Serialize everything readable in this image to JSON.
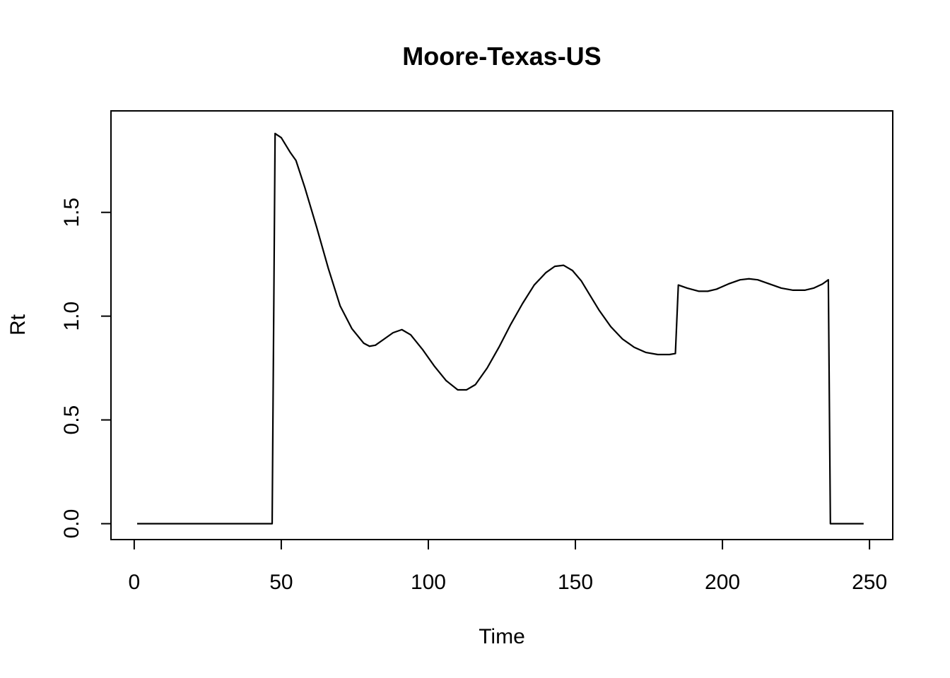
{
  "chart_data": {
    "type": "line",
    "title": "Moore-Texas-US",
    "xlabel": "Time",
    "ylabel": "Rt",
    "xlim": [
      -7.9,
      257.9
    ],
    "ylim": [
      -0.0765,
      1.989
    ],
    "xticks": [
      0,
      50,
      100,
      150,
      200,
      250
    ],
    "yticks": [
      0.0,
      0.5,
      1.0,
      1.5
    ],
    "xtick_labels": [
      "0",
      "50",
      "100",
      "150",
      "200",
      "250"
    ],
    "ytick_labels": [
      "0.0",
      "0.5",
      "1.0",
      "1.5"
    ],
    "grid": false,
    "series": [
      {
        "points": [
          [
            1,
            0
          ],
          [
            46.9,
            0
          ],
          [
            47.9,
            1.88
          ],
          [
            50,
            1.86
          ],
          [
            53,
            1.79
          ],
          [
            55,
            1.75
          ],
          [
            58,
            1.62
          ],
          [
            62,
            1.43
          ],
          [
            66,
            1.23
          ],
          [
            70,
            1.05
          ],
          [
            74,
            0.94
          ],
          [
            78,
            0.87
          ],
          [
            80,
            0.855
          ],
          [
            82,
            0.86
          ],
          [
            85,
            0.89
          ],
          [
            88,
            0.92
          ],
          [
            91,
            0.935
          ],
          [
            94,
            0.91
          ],
          [
            98,
            0.84
          ],
          [
            102,
            0.76
          ],
          [
            106,
            0.69
          ],
          [
            110,
            0.645
          ],
          [
            113,
            0.645
          ],
          [
            116,
            0.67
          ],
          [
            120,
            0.75
          ],
          [
            124,
            0.85
          ],
          [
            128,
            0.96
          ],
          [
            132,
            1.06
          ],
          [
            136,
            1.15
          ],
          [
            140,
            1.21
          ],
          [
            143,
            1.24
          ],
          [
            146,
            1.245
          ],
          [
            149,
            1.22
          ],
          [
            152,
            1.17
          ],
          [
            155,
            1.1
          ],
          [
            158,
            1.03
          ],
          [
            162,
            0.95
          ],
          [
            166,
            0.89
          ],
          [
            170,
            0.85
          ],
          [
            174,
            0.825
          ],
          [
            178,
            0.815
          ],
          [
            182,
            0.815
          ],
          [
            184,
            0.82
          ],
          [
            185,
            1.15
          ],
          [
            188,
            1.135
          ],
          [
            192,
            1.12
          ],
          [
            195,
            1.12
          ],
          [
            198,
            1.13
          ],
          [
            202,
            1.155
          ],
          [
            206,
            1.175
          ],
          [
            209,
            1.18
          ],
          [
            212,
            1.175
          ],
          [
            216,
            1.155
          ],
          [
            220,
            1.135
          ],
          [
            224,
            1.125
          ],
          [
            228,
            1.125
          ],
          [
            231,
            1.135
          ],
          [
            234,
            1.155
          ],
          [
            236,
            1.175
          ],
          [
            236.7,
            0
          ],
          [
            248,
            0
          ]
        ]
      }
    ]
  }
}
